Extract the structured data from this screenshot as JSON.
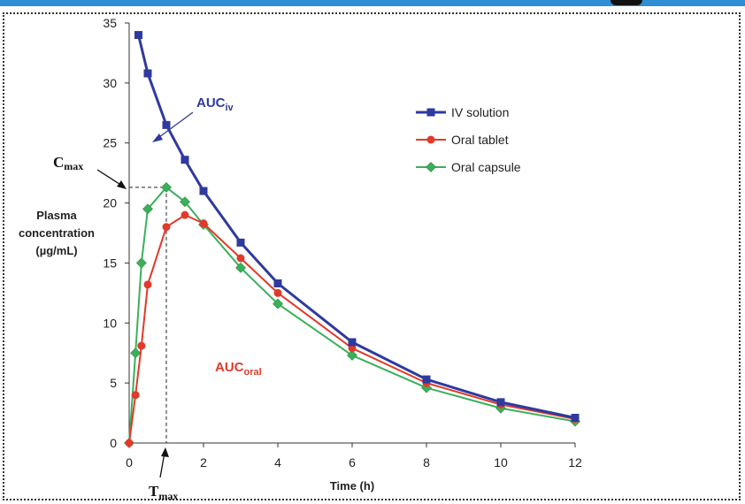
{
  "chart_data": {
    "type": "line",
    "title": "",
    "xlabel": "Time (h)",
    "ylabel": [
      "Plasma",
      "concentration",
      "(µg/mL)"
    ],
    "xlim": [
      0,
      12
    ],
    "ylim": [
      0,
      35
    ],
    "x_ticks": [
      0,
      2,
      4,
      6,
      8,
      10,
      12
    ],
    "y_ticks": [
      0,
      5,
      10,
      15,
      20,
      25,
      30,
      35
    ],
    "series": [
      {
        "name": "IV solution",
        "color": "#2e3a9e",
        "marker": "square",
        "x": [
          0.25,
          0.5,
          1,
          1.5,
          2,
          3,
          4,
          6,
          8,
          10,
          12
        ],
        "y": [
          34,
          30.8,
          26.5,
          23.6,
          21,
          16.7,
          13.3,
          8.4,
          5.3,
          3.4,
          2.1
        ]
      },
      {
        "name": "Oral tablet",
        "color": "#e03a2a",
        "marker": "circle",
        "x": [
          0,
          0.17,
          0.33,
          0.5,
          1,
          1.5,
          2,
          3,
          4,
          6,
          8,
          10,
          12
        ],
        "y": [
          0,
          4,
          8.1,
          13.2,
          18,
          19,
          18.3,
          15.4,
          12.5,
          7.9,
          5,
          3.2,
          2
        ]
      },
      {
        "name": "Oral capsule",
        "color": "#3bb05a",
        "marker": "diamond",
        "x": [
          0,
          0.17,
          0.33,
          0.5,
          1,
          1.5,
          2,
          3,
          4,
          6,
          8,
          10,
          12
        ],
        "y": [
          0,
          7.5,
          15,
          19.5,
          21.3,
          20.1,
          18.2,
          14.6,
          11.6,
          7.3,
          4.6,
          2.9,
          1.8
        ]
      }
    ],
    "annotations": {
      "auc_iv": {
        "main": "AUC",
        "sub": "iv"
      },
      "auc_oral": {
        "main": "AUC",
        "sub": "oral"
      },
      "cmax": {
        "main": "C",
        "sub": "max",
        "value": 21.3
      },
      "tmax": {
        "main": "T",
        "sub": "max",
        "value": 1
      }
    }
  }
}
